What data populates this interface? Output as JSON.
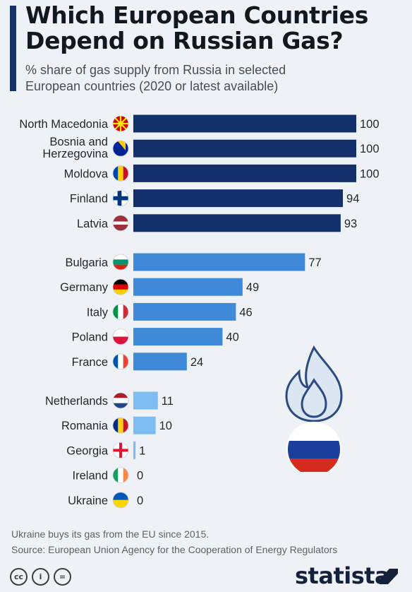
{
  "title": "Which European Countries Depend on Russian Gas?",
  "subtitle": "% share of gas supply from Russia in selected European countries (2020 or latest available)",
  "chart_data": {
    "type": "bar",
    "orientation": "horizontal",
    "xlim": [
      0,
      100
    ],
    "colors": {
      "high": "#14306c",
      "medium": "#3f8ad8",
      "low": "#7dbdf2"
    },
    "groups": [
      {
        "tier": "high",
        "items": [
          {
            "country": "North Macedonia",
            "value": 100,
            "flag": "north-macedonia"
          },
          {
            "country": "Bosnia and Herzegovina",
            "value": 100,
            "flag": "bosnia"
          },
          {
            "country": "Moldova",
            "value": 100,
            "flag": "moldova"
          },
          {
            "country": "Finland",
            "value": 94,
            "flag": "finland"
          },
          {
            "country": "Latvia",
            "value": 93,
            "flag": "latvia"
          }
        ]
      },
      {
        "tier": "medium",
        "items": [
          {
            "country": "Bulgaria",
            "value": 77,
            "flag": "bulgaria"
          },
          {
            "country": "Germany",
            "value": 49,
            "flag": "germany"
          },
          {
            "country": "Italy",
            "value": 46,
            "flag": "italy"
          },
          {
            "country": "Poland",
            "value": 40,
            "flag": "poland"
          },
          {
            "country": "France",
            "value": 24,
            "flag": "france"
          }
        ]
      },
      {
        "tier": "low",
        "items": [
          {
            "country": "Netherlands",
            "value": 11,
            "flag": "netherlands"
          },
          {
            "country": "Romania",
            "value": 10,
            "flag": "romania"
          },
          {
            "country": "Georgia",
            "value": 1,
            "flag": "georgia"
          },
          {
            "country": "Ireland",
            "value": 0,
            "flag": "ireland"
          },
          {
            "country": "Ukraine",
            "value": 0,
            "flag": "ukraine"
          }
        ]
      }
    ]
  },
  "footer": {
    "note": "Ukraine buys its gas from the EU since 2015.",
    "source": "Source: European Union Agency for the Cooperation of Energy Regulators",
    "brand": "statista",
    "license_icons": [
      "creative-commons-icon",
      "attribution-icon",
      "no-derivatives-icon"
    ]
  }
}
